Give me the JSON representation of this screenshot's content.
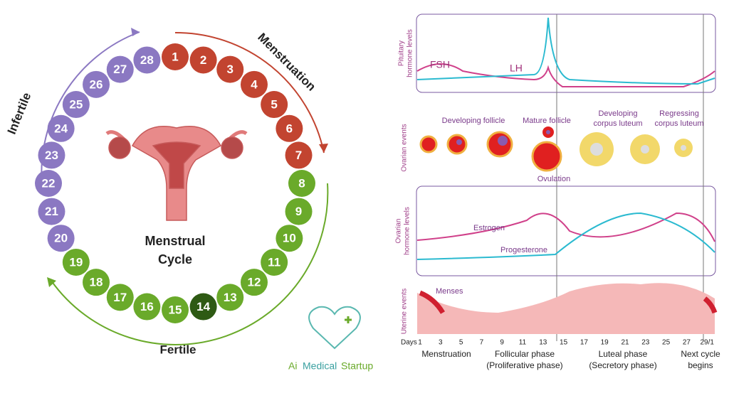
{
  "cycle": {
    "title": [
      "Menstrual",
      "Cycle"
    ],
    "phases": {
      "menstruation": "Menstruation",
      "fertile": "Fertile",
      "infertile": "Infertile"
    },
    "days": [
      {
        "label": "1",
        "color": "#c24430"
      },
      {
        "label": "2",
        "color": "#c24430"
      },
      {
        "label": "3",
        "color": "#c24430"
      },
      {
        "label": "4",
        "color": "#c24430"
      },
      {
        "label": "5",
        "color": "#c24430"
      },
      {
        "label": "6",
        "color": "#c24430"
      },
      {
        "label": "7",
        "color": "#c24430"
      },
      {
        "label": "8",
        "color": "#6aaa2a"
      },
      {
        "label": "9",
        "color": "#6aaa2a"
      },
      {
        "label": "10",
        "color": "#6aaa2a"
      },
      {
        "label": "11",
        "color": "#6aaa2a"
      },
      {
        "label": "12",
        "color": "#6aaa2a"
      },
      {
        "label": "13",
        "color": "#6aaa2a"
      },
      {
        "label": "14",
        "color": "#2e5a14"
      },
      {
        "label": "15",
        "color": "#6aaa2a"
      },
      {
        "label": "16",
        "color": "#6aaa2a"
      },
      {
        "label": "17",
        "color": "#6aaa2a"
      },
      {
        "label": "18",
        "color": "#6aaa2a"
      },
      {
        "label": "19",
        "color": "#6aaa2a"
      },
      {
        "label": "20",
        "color": "#8b78c2"
      },
      {
        "label": "21",
        "color": "#8b78c2"
      },
      {
        "label": "22",
        "color": "#8b78c2"
      },
      {
        "label": "23",
        "color": "#8b78c2"
      },
      {
        "label": "24",
        "color": "#8b78c2"
      },
      {
        "label": "25",
        "color": "#8b78c2"
      },
      {
        "label": "26",
        "color": "#8b78c2"
      },
      {
        "label": "27",
        "color": "#8b78c2"
      },
      {
        "label": "28",
        "color": "#8b78c2"
      }
    ]
  },
  "panels": {
    "pituitary": {
      "label": [
        "Pituitary",
        "hormone levels"
      ],
      "fsh": "FSH",
      "lh": "LH"
    },
    "ovarian_events": {
      "label": "Ovarian events",
      "developing_follicle": "Developing follicle",
      "mature_follicle": "Mature follicle",
      "ovulation": "Ovulation",
      "developing_corpus": [
        "Developing",
        "corpus luteum"
      ],
      "regressing_corpus": [
        "Regressing",
        "corpus luteum"
      ]
    },
    "ovarian_hormones": {
      "label": [
        "Ovarian",
        "hormone levels"
      ],
      "estrogen": "Estrogen",
      "progesterone": "Progesterone"
    },
    "uterine": {
      "label": "Uterine events",
      "menses": "Menses"
    },
    "days_label": "Days",
    "days": [
      "1",
      "3",
      "5",
      "7",
      "9",
      "11",
      "13",
      "15",
      "17",
      "19",
      "21",
      "23",
      "25",
      "27",
      "29/1"
    ],
    "phase_labels": [
      [
        "Menstruation"
      ],
      [
        "Follicular phase",
        "(Proliferative phase)"
      ],
      [
        "Luteal phase",
        "(Secretory phase)"
      ],
      [
        "Next cycle",
        "begins"
      ]
    ]
  },
  "logo": {
    "ai": "Ai",
    "medical": "Medical",
    "startup": "Startup"
  }
}
